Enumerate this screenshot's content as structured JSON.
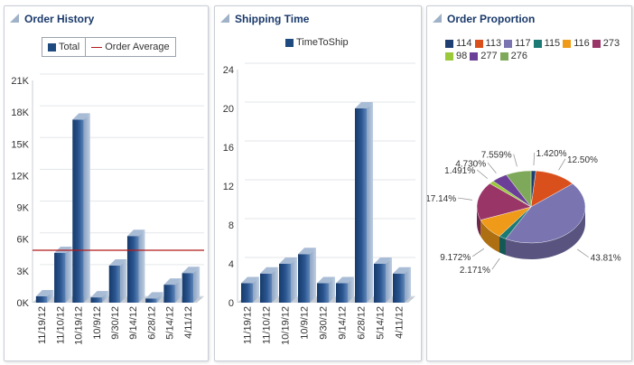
{
  "panels": {
    "order_history": {
      "title": "Order History"
    },
    "shipping_time": {
      "title": "Shipping Time"
    },
    "order_proportion": {
      "title": "Order Proportion"
    }
  },
  "colors": {
    "bar": "#1f4a80",
    "bar_light": "#4f7ab1",
    "bar_top": "#a9bcd6",
    "average_line": "#b21818",
    "title": "#1a3a6b",
    "grid": "#e3e6ea"
  },
  "chart_data": [
    {
      "type": "bar",
      "title": "Order History",
      "categories": [
        "11/19/12",
        "11/10/12",
        "10/19/12",
        "10/9/12",
        "9/30/12",
        "9/14/12",
        "6/28/12",
        "5/14/12",
        "4/11/12"
      ],
      "series": [
        {
          "name": "Total",
          "values": [
            600,
            4700,
            17300,
            500,
            3500,
            6300,
            400,
            1700,
            2800
          ]
        },
        {
          "name": "Order Average",
          "type": "line",
          "value": 4950
        }
      ],
      "ylim": [
        0,
        21000
      ],
      "yticks": [
        "0K",
        "3K",
        "6K",
        "9K",
        "12K",
        "15K",
        "18K",
        "21K"
      ],
      "legend": [
        "Total",
        "Order Average"
      ],
      "legend_position": "top-center",
      "grid": true
    },
    {
      "type": "bar",
      "title": "Shipping Time",
      "categories": [
        "11/19/12",
        "11/10/12",
        "10/19/12",
        "10/9/12",
        "9/30/12",
        "9/14/12",
        "6/28/12",
        "5/14/12",
        "4/11/12"
      ],
      "series": [
        {
          "name": "TimeToShip",
          "values": [
            2,
            3,
            4,
            5,
            2,
            2,
            20,
            4,
            3
          ]
        }
      ],
      "ylim": [
        0,
        24
      ],
      "yticks": [
        "0",
        "4",
        "8",
        "12",
        "16",
        "20",
        "24"
      ],
      "legend": [
        "TimeToShip"
      ],
      "legend_position": "top-center",
      "grid": true
    },
    {
      "type": "pie",
      "title": "Order Proportion",
      "legend": [
        {
          "name": "114",
          "color": "#1f3f73"
        },
        {
          "name": "113",
          "color": "#d9501d"
        },
        {
          "name": "117",
          "color": "#7a74b0"
        },
        {
          "name": "115",
          "color": "#1c7a74"
        },
        {
          "name": "116",
          "color": "#f09a19"
        },
        {
          "name": "273",
          "color": "#9a3568"
        },
        {
          "name": "98",
          "color": "#9ac93a"
        },
        {
          "name": "277",
          "color": "#6b3f97"
        },
        {
          "name": "276",
          "color": "#7fa95a"
        }
      ],
      "slices": [
        {
          "name": "114",
          "value": 1.42,
          "label": "1.420%"
        },
        {
          "name": "113",
          "value": 12.5,
          "label": "12.50%"
        },
        {
          "name": "117",
          "value": 43.81,
          "label": "43.81%"
        },
        {
          "name": "115",
          "value": 2.171,
          "label": "2.171%"
        },
        {
          "name": "116",
          "value": 9.172,
          "label": "9.172%"
        },
        {
          "name": "273",
          "value": 17.14,
          "label": "17.14%"
        },
        {
          "name": "98",
          "value": 1.491,
          "label": "1.491%"
        },
        {
          "name": "277",
          "value": 4.73,
          "label": "4.730%"
        },
        {
          "name": "276",
          "value": 7.559,
          "label": "7.559%"
        }
      ]
    }
  ]
}
